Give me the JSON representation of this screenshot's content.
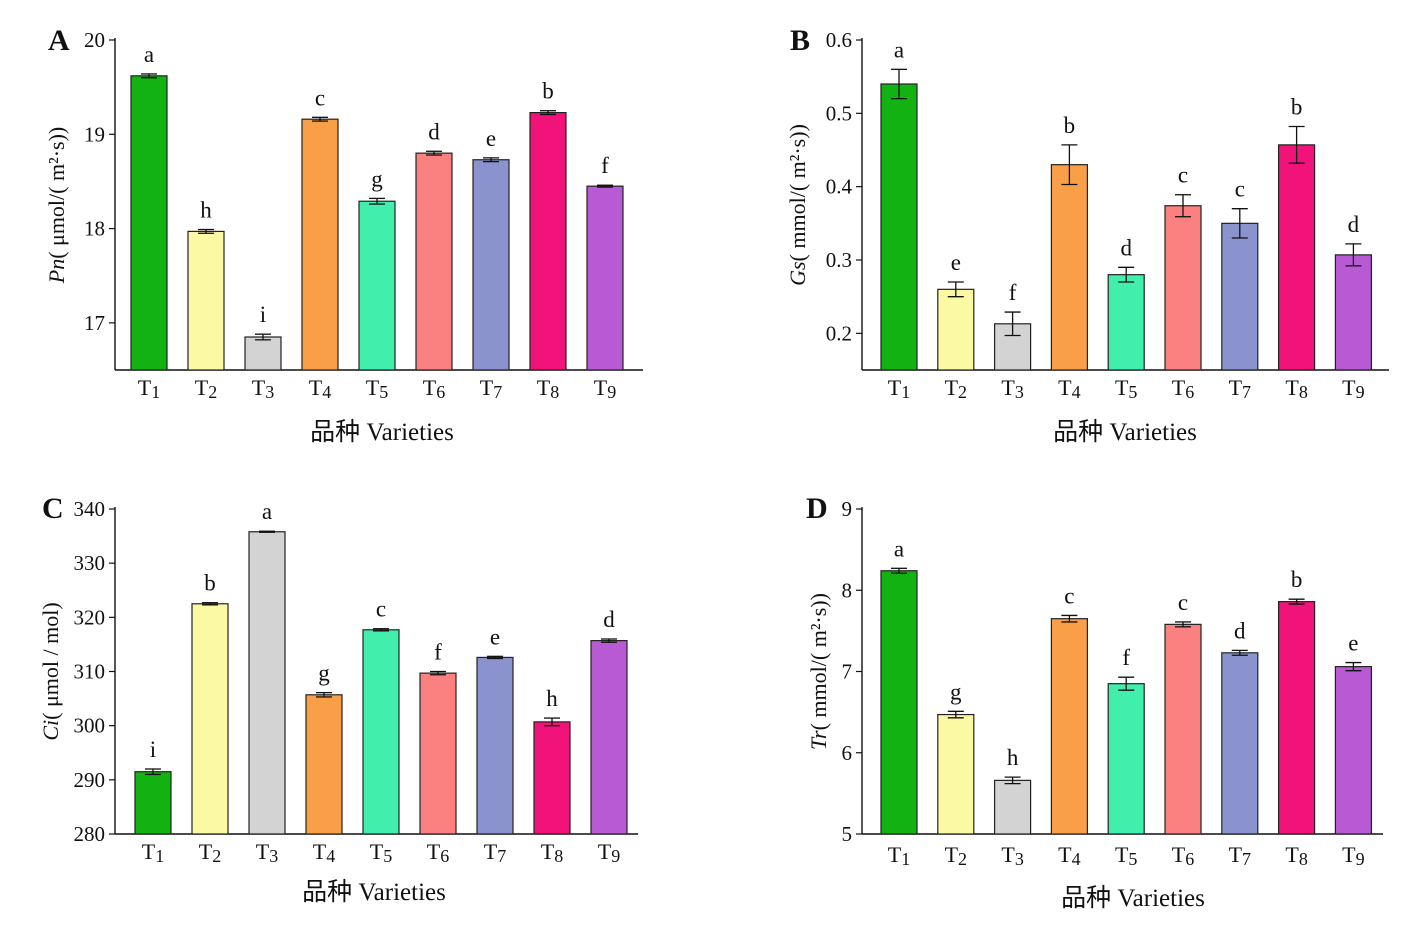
{
  "colors": {
    "T1": "#12b212",
    "T2": "#fbf9a3",
    "T3": "#d3d3d3",
    "T4": "#f99f48",
    "T5": "#41eeab",
    "T6": "#fb8080",
    "T7": "#8b93cf",
    "T8": "#f1137a",
    "T9": "#b85ad4"
  },
  "chart_data": [
    {
      "panel": "A",
      "type": "bar",
      "categories": [
        "T1",
        "T2",
        "T3",
        "T4",
        "T5",
        "T6",
        "T7",
        "T8",
        "T9"
      ],
      "values": [
        19.62,
        17.97,
        16.85,
        19.16,
        18.29,
        18.8,
        18.73,
        19.23,
        18.45
      ],
      "errors": [
        0.02,
        0.02,
        0.03,
        0.02,
        0.03,
        0.02,
        0.02,
        0.02,
        0.01
      ],
      "letters": [
        "a",
        "h",
        "i",
        "c",
        "g",
        "d",
        "e",
        "b",
        "f"
      ],
      "ylim": [
        16.5,
        20
      ],
      "yticks": [
        17,
        18,
        19,
        20
      ],
      "ylabel_italic": "Pn",
      "ylabel_rest": "( μmol/( m²·s))",
      "xlabel": "品种 Varieties"
    },
    {
      "panel": "B",
      "type": "bar",
      "categories": [
        "T1",
        "T2",
        "T3",
        "T4",
        "T5",
        "T6",
        "T7",
        "T8",
        "T9"
      ],
      "values": [
        0.54,
        0.26,
        0.213,
        0.43,
        0.28,
        0.374,
        0.35,
        0.457,
        0.307
      ],
      "errors": [
        0.02,
        0.01,
        0.016,
        0.027,
        0.01,
        0.015,
        0.02,
        0.025,
        0.015
      ],
      "letters": [
        "a",
        "e",
        "f",
        "b",
        "d",
        "c",
        "c",
        "b",
        "d"
      ],
      "ylim": [
        0.15,
        0.6
      ],
      "yticks": [
        0.2,
        0.3,
        0.4,
        0.5,
        0.6
      ],
      "ylabel_italic": "Gs",
      "ylabel_rest": "( mmol/( m²·s))",
      "xlabel": "品种 Varieties"
    },
    {
      "panel": "C",
      "type": "bar",
      "categories": [
        "T1",
        "T2",
        "T3",
        "T4",
        "T5",
        "T6",
        "T7",
        "T8",
        "T9"
      ],
      "values": [
        291.5,
        322.5,
        335.8,
        305.7,
        317.7,
        309.7,
        312.6,
        300.7,
        315.7
      ],
      "errors": [
        0.5,
        0.2,
        0.1,
        0.4,
        0.2,
        0.3,
        0.2,
        0.7,
        0.3
      ],
      "letters": [
        "i",
        "b",
        "a",
        "g",
        "c",
        "f",
        "e",
        "h",
        "d"
      ],
      "ylim": [
        280,
        340
      ],
      "yticks": [
        280,
        290,
        300,
        310,
        320,
        330,
        340
      ],
      "ylabel_italic": "Ci",
      "ylabel_rest": "( μmol / mol)",
      "xlabel": "品种 Varieties"
    },
    {
      "panel": "D",
      "type": "bar",
      "categories": [
        "T1",
        "T2",
        "T3",
        "T4",
        "T5",
        "T6",
        "T7",
        "T8",
        "T9"
      ],
      "values": [
        8.24,
        6.47,
        5.66,
        7.65,
        6.85,
        7.58,
        7.23,
        7.86,
        7.06
      ],
      "errors": [
        0.03,
        0.04,
        0.04,
        0.04,
        0.08,
        0.03,
        0.03,
        0.03,
        0.05
      ],
      "letters": [
        "a",
        "g",
        "h",
        "c",
        "f",
        "c",
        "d",
        "b",
        "e"
      ],
      "ylim": [
        5,
        9
      ],
      "yticks": [
        5,
        6,
        7,
        8,
        9
      ],
      "ylabel_italic": "Tr",
      "ylabel_rest": "( mmol/( m²·s))",
      "xlabel": "品种 Varieties"
    }
  ]
}
